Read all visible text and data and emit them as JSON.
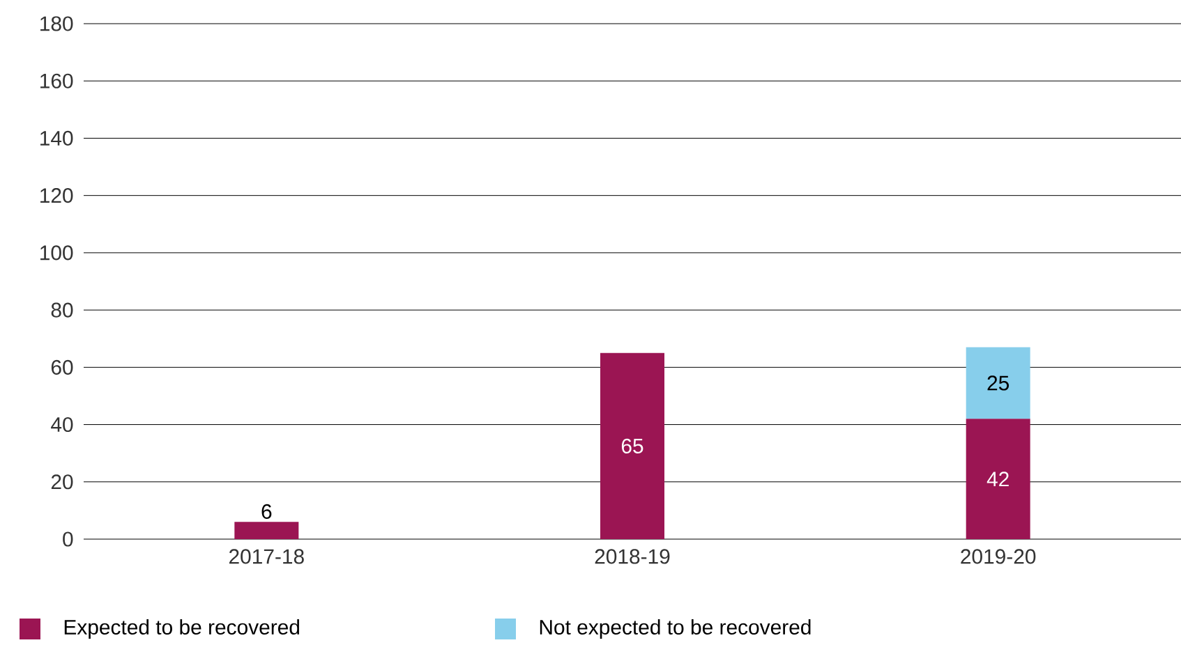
{
  "chart_data": {
    "type": "bar",
    "stacked": true,
    "categories": [
      "2017-18",
      "2018-19",
      "2019-20"
    ],
    "series": [
      {
        "name": "Expected to be recovered",
        "color": "#9b1553",
        "values": [
          6,
          65,
          42
        ],
        "value_labels": [
          "6",
          "65",
          "42"
        ]
      },
      {
        "name": "Not expected to be recovered",
        "color": "#87ceeb",
        "values": [
          0,
          0,
          25
        ],
        "value_labels": [
          null,
          null,
          "25"
        ]
      }
    ],
    "ylim": [
      0,
      180
    ],
    "yticks": [
      0,
      20,
      40,
      60,
      80,
      100,
      120,
      140,
      160,
      180
    ],
    "grid": "y",
    "legend": "bottom left"
  }
}
